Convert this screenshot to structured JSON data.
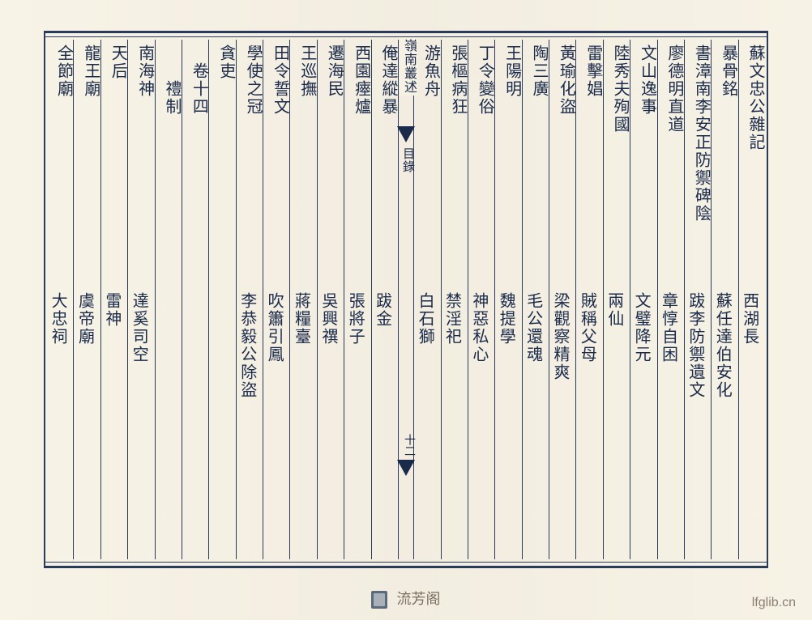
{
  "spine": {
    "title": "嶺南叢述",
    "sub": "目錄",
    "page_num": "十二"
  },
  "columns": [
    {
      "top": "蘇文忠公雜記",
      "bottom": "西湖長",
      "top_indent": 0
    },
    {
      "top": "暴骨銘",
      "bottom": "蘇任達伯安化",
      "top_indent": 0
    },
    {
      "top": "書漳南李安正防禦碑陰",
      "bottom": "跋李防禦遺文",
      "top_indent": 0
    },
    {
      "top": "廖德明直道",
      "bottom": "章惇自困",
      "top_indent": 0
    },
    {
      "top": "文山逸事",
      "bottom": "文璧降元",
      "top_indent": 0
    },
    {
      "top": "陸秀夫殉國",
      "bottom": "兩仙",
      "top_indent": 0
    },
    {
      "top": "雷擊娼",
      "bottom": "賊稱父母",
      "top_indent": 0
    },
    {
      "top": "黃瑜化盜",
      "bottom": "梁觀察精爽",
      "top_indent": 0
    },
    {
      "top": "陶三廣",
      "bottom": "毛公還魂",
      "top_indent": 0
    },
    {
      "top": "王陽明",
      "bottom": "魏提學",
      "top_indent": 0
    },
    {
      "top": "丁令變俗",
      "bottom": "神惡私心",
      "top_indent": 0
    },
    {
      "top": "張樞病狂",
      "bottom": "禁淫祀",
      "top_indent": 0
    },
    {
      "top": "游魚舟",
      "bottom": "白石獅",
      "top_indent": 0
    },
    {
      "top": "俺達縱暴",
      "bottom": "跋金",
      "top_indent": 0
    },
    {
      "top": "西園瘞爐",
      "bottom": "張將子",
      "top_indent": 0
    },
    {
      "top": "遷海民",
      "bottom": "吳興禩",
      "top_indent": 0
    },
    {
      "top": "王巡撫",
      "bottom": "蔣糧臺",
      "top_indent": 0
    },
    {
      "top": "田令誓文",
      "bottom": "吹簫引鳳",
      "top_indent": 0
    },
    {
      "top": "學使之冠",
      "bottom": "李恭毅公除盜",
      "top_indent": 0
    },
    {
      "top": "貪吏",
      "bottom": "",
      "top_indent": 0
    },
    {
      "top": "卷十四",
      "bottom": "",
      "top_indent": 1
    },
    {
      "top": "禮制",
      "bottom": "",
      "top_indent": 2
    },
    {
      "top": "南海神",
      "bottom": "達奚司空",
      "top_indent": 0
    },
    {
      "top": "天后",
      "bottom": "雷神",
      "top_indent": 0
    },
    {
      "top": "龍王廟",
      "bottom": "虞帝廟",
      "top_indent": 0
    },
    {
      "top": "全節廟",
      "bottom": "大忠祠",
      "top_indent": 0
    }
  ],
  "watermark": {
    "text": "流芳阁",
    "url": "lfglib.cn"
  },
  "style": {
    "background": "#f5f1e4",
    "ink": "#1a2a4a",
    "border": "#2a3a5a",
    "font_size_main": 20,
    "font_size_spine": 16
  }
}
